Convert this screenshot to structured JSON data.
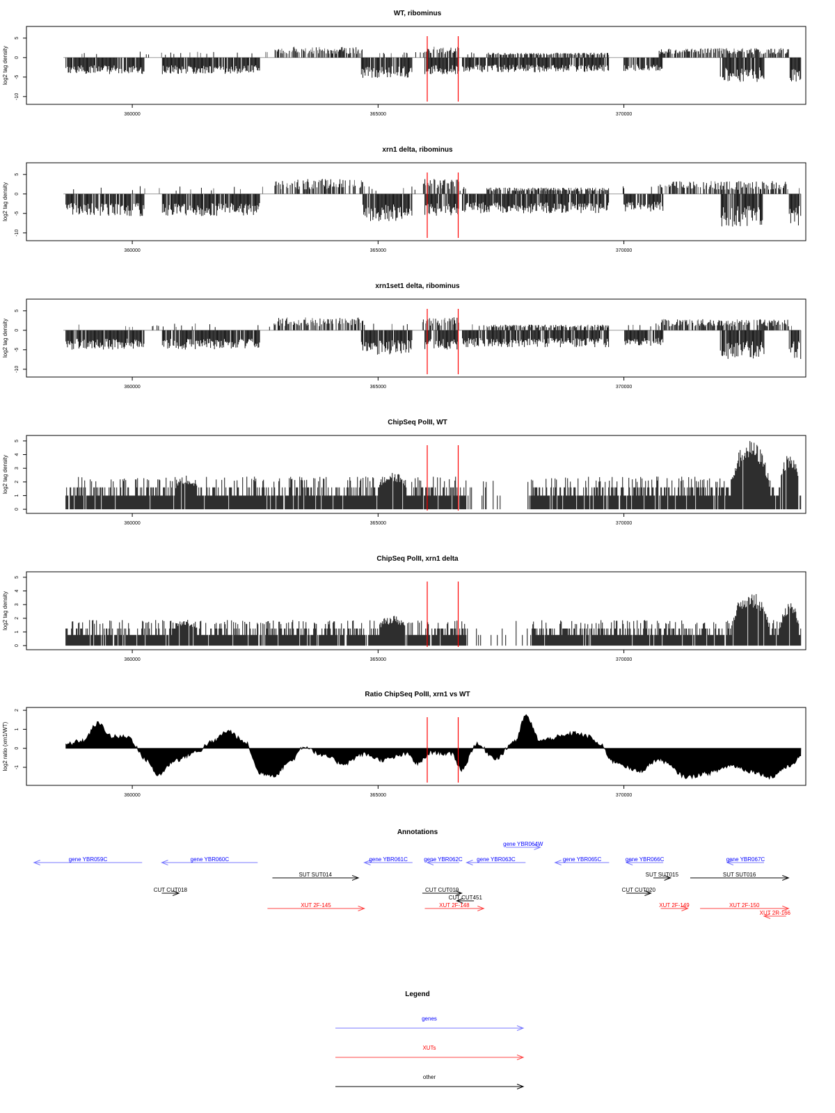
{
  "axis": {
    "xlim": [
      358300,
      373700
    ],
    "x_ticks": [
      {
        "value": 360000,
        "label": "360000"
      },
      {
        "value": 365000,
        "label": "365000"
      },
      {
        "value": 370000,
        "label": "370000"
      }
    ],
    "markers": [
      366000,
      366630
    ],
    "marker_color": "#ff0000"
  },
  "panels": [
    {
      "title": "WT, ribominus",
      "ylabel": "log2 tag density",
      "kind": "strand",
      "ylim": [
        -12,
        8
      ],
      "y_ticks": [
        {
          "value": 5,
          "label": "5"
        },
        {
          "value": 0,
          "label": "0"
        },
        {
          "value": -5,
          "label": "-5"
        },
        {
          "value": -10,
          "label": "-10"
        }
      ]
    },
    {
      "title": "xrn1 delta, ribominus",
      "ylabel": "log2 tag density",
      "kind": "strand",
      "ylim": [
        -12,
        8
      ],
      "y_ticks": [
        {
          "value": 5,
          "label": "5"
        },
        {
          "value": 0,
          "label": "0"
        },
        {
          "value": -5,
          "label": "-5"
        },
        {
          "value": -10,
          "label": "-10"
        }
      ]
    },
    {
      "title": "xrn1set1 delta, ribominus",
      "ylabel": "log2 tag density",
      "kind": "strand",
      "ylim": [
        -12,
        8
      ],
      "y_ticks": [
        {
          "value": 5,
          "label": "5"
        },
        {
          "value": 0,
          "label": "0"
        },
        {
          "value": -5,
          "label": "-5"
        },
        {
          "value": -10,
          "label": "-10"
        }
      ]
    },
    {
      "title": "ChipSeq PolII, WT",
      "ylabel": "log2 tag density",
      "kind": "chip",
      "ylim": [
        -0.3,
        5.4
      ],
      "y_ticks": [
        {
          "value": 0,
          "label": "0"
        },
        {
          "value": 1,
          "label": "1"
        },
        {
          "value": 2,
          "label": "2"
        },
        {
          "value": 3,
          "label": "3"
        },
        {
          "value": 4,
          "label": "4"
        },
        {
          "value": 5,
          "label": "5"
        }
      ]
    },
    {
      "title": "ChipSeq PolII, xrn1 delta",
      "ylabel": "log2 tag density",
      "kind": "chip",
      "ylim": [
        -0.3,
        5.4
      ],
      "y_ticks": [
        {
          "value": 0,
          "label": "0"
        },
        {
          "value": 1,
          "label": "1"
        },
        {
          "value": 2,
          "label": "2"
        },
        {
          "value": 3,
          "label": "3"
        },
        {
          "value": 4,
          "label": "4"
        },
        {
          "value": 5,
          "label": "5"
        }
      ]
    },
    {
      "title": "Ratio ChipSeq PolII, xrn1 vs WT",
      "ylabel": "log2 ratio (xrn1/WT)",
      "kind": "ratio",
      "ylim": [
        -1.95,
        2.15
      ],
      "y_ticks": [
        {
          "value": 2,
          "label": "2"
        },
        {
          "value": 1,
          "label": "1"
        },
        {
          "value": 0,
          "label": "0"
        },
        {
          "value": -1,
          "label": "-1"
        }
      ]
    }
  ],
  "annotations": {
    "title": "Annotations",
    "colors": {
      "gene": "#0000ff",
      "xut": "#ff0000",
      "other": "#000000",
      "gene_line": "#7777ff",
      "xut_line": "#ff4444"
    },
    "features": [
      {
        "label": "gene YBR059C",
        "type": "gene",
        "start": 358000,
        "end": 360200,
        "strand": "-",
        "row": 0
      },
      {
        "label": "gene YBR060C",
        "type": "gene",
        "start": 360600,
        "end": 362550,
        "strand": "-",
        "row": 0
      },
      {
        "label": "gene YBR061C",
        "type": "gene",
        "start": 364720,
        "end": 365700,
        "strand": "-",
        "row": 0
      },
      {
        "label": "gene YBR062C",
        "type": "gene",
        "start": 366000,
        "end": 366650,
        "strand": "-",
        "row": 0
      },
      {
        "label": "gene YBR063C",
        "type": "gene",
        "start": 366800,
        "end": 368000,
        "strand": "-",
        "row": 0
      },
      {
        "label": "gene YBR064W",
        "type": "gene",
        "start": 367600,
        "end": 368300,
        "strand": "+",
        "row": -1
      },
      {
        "label": "gene YBR065C",
        "type": "gene",
        "start": 368600,
        "end": 369700,
        "strand": "-",
        "row": 0
      },
      {
        "label": "gene YBR066C",
        "type": "gene",
        "start": 370050,
        "end": 370800,
        "strand": "-",
        "row": 0
      },
      {
        "label": "gene YBR067C",
        "type": "gene",
        "start": 372100,
        "end": 372850,
        "strand": "-",
        "row": 0
      },
      {
        "label": "SUT SUT014",
        "type": "other",
        "start": 362850,
        "end": 364600,
        "strand": "+",
        "row": 1
      },
      {
        "label": "SUT SUT015",
        "type": "other",
        "start": 370600,
        "end": 370950,
        "strand": "+",
        "row": 1
      },
      {
        "label": "SUT SUT016",
        "type": "other",
        "start": 371350,
        "end": 373350,
        "strand": "+",
        "row": 1
      },
      {
        "label": "CUT CUT018",
        "type": "other",
        "start": 360600,
        "end": 360950,
        "strand": "+",
        "row": 2
      },
      {
        "label": "CUT CUT019",
        "type": "other",
        "start": 365900,
        "end": 366700,
        "strand": "+",
        "row": 2
      },
      {
        "label": "CUT CUT451",
        "type": "other",
        "start": 366600,
        "end": 366950,
        "strand": "-",
        "row": 2.5
      },
      {
        "label": "CUT CUT020",
        "type": "other",
        "start": 370050,
        "end": 370550,
        "strand": "+",
        "row": 2
      },
      {
        "label": "XUT 2F-145",
        "type": "xut",
        "start": 362750,
        "end": 364720,
        "strand": "+",
        "row": 3
      },
      {
        "label": "XUT 2F-148",
        "type": "xut",
        "start": 365950,
        "end": 367150,
        "strand": "+",
        "row": 3
      },
      {
        "label": "XUT 2F-149",
        "type": "xut",
        "start": 370750,
        "end": 371300,
        "strand": "+",
        "row": 3
      },
      {
        "label": "XUT 2F-150",
        "type": "xut",
        "start": 371550,
        "end": 373350,
        "strand": "+",
        "row": 3
      },
      {
        "label": "XUT 2R-166",
        "type": "xut",
        "start": 372850,
        "end": 373300,
        "strand": "-",
        "row": 3.5
      }
    ]
  },
  "legend": {
    "title": "Legend",
    "items": [
      {
        "label": "genes",
        "type": "gene"
      },
      {
        "label": "XUTs",
        "type": "xut"
      },
      {
        "label": "other",
        "type": "other"
      }
    ]
  }
}
